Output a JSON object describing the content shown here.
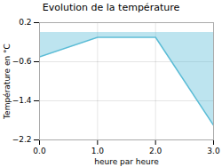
{
  "chart_data": {
    "type": "area",
    "title": "Evolution de la température",
    "xlabel": "heure par heure",
    "ylabel": "Température en °C",
    "x": [
      0,
      1,
      2,
      3
    ],
    "values": [
      -0.5,
      -0.1,
      -0.1,
      -1.9
    ],
    "color": "#5bbcd6",
    "xlim": [
      0,
      3
    ],
    "xticks": [
      0,
      1,
      2,
      3
    ],
    "ylim": [
      -2.2,
      0.2
    ],
    "yticks": [
      0.2,
      -0.6,
      -1.4,
      -2.2
    ],
    "grid": true
  }
}
